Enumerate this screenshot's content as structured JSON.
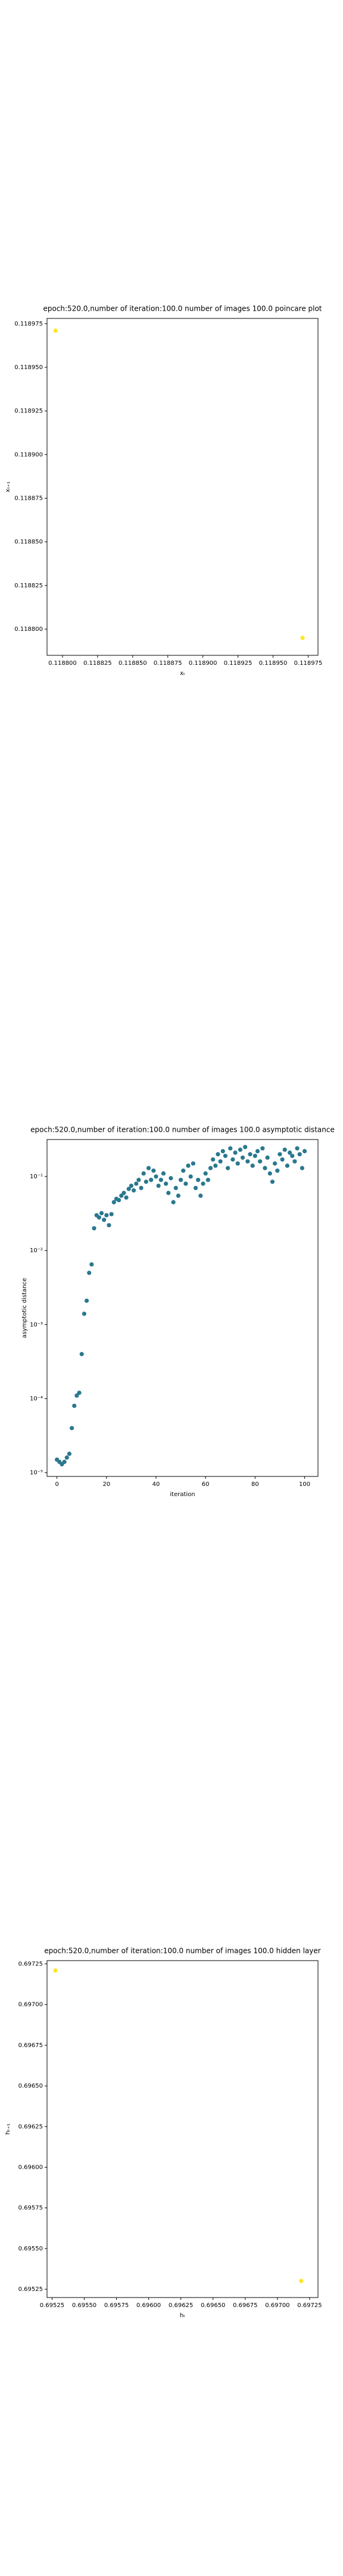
{
  "chart_data": [
    {
      "type": "scatter",
      "title": "epoch:520.0,number of iteration:100.0 number of images 100.0 poincare plot",
      "x_label": "xₜ",
      "y_label": "xₜ₊₁",
      "series": [
        {
          "color": "#fde725",
          "x": [
            0.118795,
            0.118971
          ],
          "values": [
            0.118971,
            0.118795
          ]
        }
      ],
      "xlim": [
        0.118789,
        0.118982
      ],
      "xticks": [
        {
          "value": 0.1188,
          "label": "0.118800"
        },
        0.118825,
        {
          "value": 0.11885,
          "label": "0.118850"
        },
        0.118875,
        {
          "value": 0.1189,
          "label": "0.118900"
        },
        0.118925,
        {
          "value": 0.11895,
          "label": "0.118950"
        },
        0.118975
      ],
      "ylim": [
        0.118785,
        0.118978
      ],
      "yticks": [
        {
          "value": 0.1188,
          "label": "0.118800"
        },
        0.118825,
        {
          "value": 0.11885,
          "label": "0.118850"
        },
        0.118875,
        {
          "value": 0.1189,
          "label": "0.118900"
        },
        0.118925,
        {
          "value": 0.11895,
          "label": "0.118950"
        },
        0.118975
      ]
    },
    {
      "type": "scatter",
      "title": "epoch:520.0,number of iteration:100.0  number of images 100.0 asymptotic distance",
      "x_label": "iteration",
      "y_label": "asymptotic distance",
      "y_log": true,
      "series": [
        {
          "color": "#2a788e",
          "x": [
            0,
            1,
            2,
            3,
            4,
            5,
            6,
            7,
            8,
            9,
            10,
            11,
            12,
            13,
            14,
            15,
            16,
            17,
            18,
            19,
            20,
            21,
            22,
            23,
            24,
            25,
            26,
            27,
            28,
            29,
            30,
            31,
            32,
            33,
            34,
            35,
            36,
            37,
            38,
            39,
            40,
            41,
            42,
            43,
            44,
            45,
            46,
            47,
            48,
            49,
            50,
            51,
            52,
            53,
            54,
            55,
            56,
            57,
            58,
            59,
            60,
            61,
            62,
            63,
            64,
            65,
            66,
            67,
            68,
            69,
            70,
            71,
            72,
            73,
            74,
            75,
            76,
            77,
            78,
            79,
            80,
            81,
            82,
            83,
            84,
            85,
            86,
            87,
            88,
            89,
            90,
            91,
            92,
            93,
            94,
            95,
            96,
            97,
            98,
            99,
            100
          ],
          "values": [
            1.5e-05,
            1.4e-05,
            1.3e-05,
            1.4e-05,
            1.6e-05,
            1.8e-05,
            4e-05,
            8e-05,
            0.00011,
            0.00012,
            0.0004,
            0.0014,
            0.0021,
            0.005,
            0.0065,
            0.02,
            0.03,
            0.028,
            0.032,
            0.026,
            0.03,
            0.022,
            0.031,
            0.045,
            0.05,
            0.048,
            0.055,
            0.06,
            0.052,
            0.068,
            0.075,
            0.065,
            0.08,
            0.09,
            0.07,
            0.11,
            0.085,
            0.13,
            0.09,
            0.12,
            0.1,
            0.075,
            0.09,
            0.11,
            0.08,
            0.06,
            0.095,
            0.045,
            0.07,
            0.055,
            0.09,
            0.12,
            0.08,
            0.14,
            0.1,
            0.15,
            0.07,
            0.09,
            0.055,
            0.08,
            0.11,
            0.09,
            0.13,
            0.17,
            0.14,
            0.2,
            0.16,
            0.22,
            0.19,
            0.13,
            0.24,
            0.17,
            0.21,
            0.15,
            0.23,
            0.18,
            0.25,
            0.16,
            0.2,
            0.14,
            0.19,
            0.22,
            0.16,
            0.24,
            0.13,
            0.18,
            0.11,
            0.085,
            0.15,
            0.12,
            0.2,
            0.17,
            0.23,
            0.14,
            0.21,
            0.19,
            0.16,
            0.24,
            0.2,
            0.13,
            0.22
          ]
        }
      ],
      "xlim": [
        -4,
        105.4
      ],
      "xticks": [
        0,
        20,
        40,
        60,
        80,
        100
      ],
      "ylim": [
        8.9e-06,
        0.316
      ],
      "yticks": [
        {
          "value": 1e-05,
          "label": "10⁻⁵"
        },
        {
          "value": 0.0001,
          "label": "10⁻⁴"
        },
        {
          "value": 0.001,
          "label": "10⁻³"
        },
        {
          "value": 0.01,
          "label": "10⁻²"
        },
        {
          "value": 0.1,
          "label": "10⁻¹"
        }
      ]
    },
    {
      "type": "scatter",
      "title": "epoch:520.0,number of iteration:100.0  number of images 100.0 hidden layer",
      "x_label": "hₜ",
      "y_label": "hₜ₊₁",
      "series": [
        {
          "color": "#fde725",
          "x": [
            0.695276,
            0.697185
          ],
          "values": [
            0.697209,
            0.695301
          ]
        }
      ],
      "xlim": [
        0.695211,
        0.697315
      ],
      "xticks": [
        0.69525,
        {
          "value": 0.6955,
          "label": "0.69550"
        },
        0.69575,
        {
          "value": 0.696,
          "label": "0.69600"
        },
        0.69625,
        {
          "value": 0.6965,
          "label": "0.69650"
        },
        0.69675,
        {
          "value": 0.697,
          "label": "0.69700"
        },
        0.69725
      ],
      "ylim": [
        0.695199,
        0.69727
      ],
      "yticks": [
        0.69525,
        {
          "value": 0.6955,
          "label": "0.69550"
        },
        0.69575,
        {
          "value": 0.696,
          "label": "0.69600"
        },
        0.69625,
        {
          "value": 0.6965,
          "label": "0.69650"
        },
        0.69675,
        {
          "value": 0.697,
          "label": "0.69700"
        },
        0.69725
      ]
    }
  ]
}
